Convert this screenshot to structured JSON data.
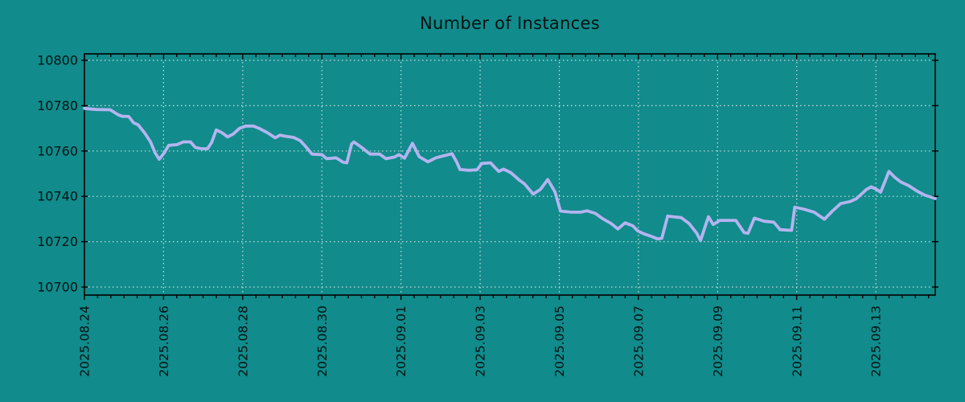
{
  "title": "Number of Instances",
  "colors": {
    "background": "#118b8b",
    "line": "#b4b4f0",
    "grid": "#cfdede",
    "frame": "#000000",
    "text": "#021212"
  },
  "chart_data": {
    "type": "line",
    "title": "Number of Instances",
    "legend": null,
    "grid": "dotted",
    "x_axis": {
      "tick_labels": [
        "2025.08.24",
        "2025.08.26",
        "2025.08.28",
        "2025.08.30",
        "2025.09.01",
        "2025.09.03",
        "2025.09.05",
        "2025.09.07",
        "2025.09.09",
        "2025.09.11",
        "2025.09.13"
      ],
      "tick_days": [
        0,
        2,
        4,
        6,
        8,
        10,
        12,
        14,
        16,
        18,
        20
      ],
      "range_days": [
        0,
        21.5
      ],
      "minor_tick_days": 0.3333,
      "label_rotation_deg": -90
    },
    "y_axis": {
      "ticks": [
        10700,
        10720,
        10740,
        10760,
        10780,
        10800
      ],
      "range": [
        10700,
        10800
      ]
    },
    "series": [
      {
        "name": "instances",
        "points": [
          [
            0.0,
            10778.8
          ],
          [
            0.3,
            10778.3
          ],
          [
            0.65,
            10778.2
          ],
          [
            0.85,
            10776.0
          ],
          [
            0.96,
            10775.3
          ],
          [
            1.12,
            10775.2
          ],
          [
            1.24,
            10772.5
          ],
          [
            1.36,
            10771.5
          ],
          [
            1.52,
            10768.0
          ],
          [
            1.67,
            10764.0
          ],
          [
            1.79,
            10759.0
          ],
          [
            1.89,
            10756.4
          ],
          [
            2.01,
            10759.0
          ],
          [
            2.13,
            10762.5
          ],
          [
            2.34,
            10762.8
          ],
          [
            2.5,
            10764.0
          ],
          [
            2.68,
            10764.0
          ],
          [
            2.8,
            10761.6
          ],
          [
            2.95,
            10761.0
          ],
          [
            3.11,
            10761.0
          ],
          [
            3.21,
            10763.6
          ],
          [
            3.33,
            10769.3
          ],
          [
            3.48,
            10768.0
          ],
          [
            3.62,
            10766.2
          ],
          [
            3.76,
            10767.5
          ],
          [
            3.92,
            10770.0
          ],
          [
            4.07,
            10771.0
          ],
          [
            4.27,
            10771.0
          ],
          [
            4.41,
            10770.0
          ],
          [
            4.63,
            10768.0
          ],
          [
            4.82,
            10765.8
          ],
          [
            4.94,
            10767.0
          ],
          [
            5.08,
            10766.5
          ],
          [
            5.28,
            10766.0
          ],
          [
            5.45,
            10764.6
          ],
          [
            5.59,
            10762.0
          ],
          [
            5.75,
            10758.6
          ],
          [
            6.0,
            10758.4
          ],
          [
            6.12,
            10756.6
          ],
          [
            6.36,
            10757.0
          ],
          [
            6.54,
            10755.0
          ],
          [
            6.63,
            10754.8
          ],
          [
            6.75,
            10763.0
          ],
          [
            6.81,
            10764.0
          ],
          [
            7.01,
            10761.5
          ],
          [
            7.22,
            10758.6
          ],
          [
            7.46,
            10758.6
          ],
          [
            7.62,
            10756.6
          ],
          [
            7.83,
            10757.3
          ],
          [
            7.95,
            10758.4
          ],
          [
            8.09,
            10756.8
          ],
          [
            8.29,
            10763.4
          ],
          [
            8.46,
            10757.5
          ],
          [
            8.68,
            10755.2
          ],
          [
            8.88,
            10757.0
          ],
          [
            9.11,
            10758.0
          ],
          [
            9.29,
            10758.8
          ],
          [
            9.41,
            10755.0
          ],
          [
            9.49,
            10751.8
          ],
          [
            9.72,
            10751.5
          ],
          [
            9.92,
            10751.7
          ],
          [
            10.04,
            10754.5
          ],
          [
            10.26,
            10754.8
          ],
          [
            10.47,
            10751.0
          ],
          [
            10.59,
            10752.0
          ],
          [
            10.77,
            10750.5
          ],
          [
            10.98,
            10747.3
          ],
          [
            11.12,
            10745.5
          ],
          [
            11.34,
            10741.0
          ],
          [
            11.52,
            10743.0
          ],
          [
            11.71,
            10747.4
          ],
          [
            11.89,
            10742.0
          ],
          [
            12.03,
            10733.5
          ],
          [
            12.3,
            10733.0
          ],
          [
            12.54,
            10733.0
          ],
          [
            12.7,
            10733.6
          ],
          [
            12.91,
            10732.5
          ],
          [
            13.11,
            10730.0
          ],
          [
            13.31,
            10728.0
          ],
          [
            13.48,
            10725.6
          ],
          [
            13.66,
            10728.3
          ],
          [
            13.86,
            10727.0
          ],
          [
            13.98,
            10724.8
          ],
          [
            14.13,
            10723.5
          ],
          [
            14.33,
            10722.3
          ],
          [
            14.49,
            10721.2
          ],
          [
            14.59,
            10721.5
          ],
          [
            14.74,
            10731.3
          ],
          [
            14.88,
            10731.0
          ],
          [
            15.08,
            10730.6
          ],
          [
            15.28,
            10728.0
          ],
          [
            15.47,
            10723.8
          ],
          [
            15.57,
            10720.5
          ],
          [
            15.71,
            10728.0
          ],
          [
            15.77,
            10731.0
          ],
          [
            15.89,
            10727.6
          ],
          [
            16.06,
            10729.4
          ],
          [
            16.46,
            10729.4
          ],
          [
            16.67,
            10724.0
          ],
          [
            16.77,
            10723.7
          ],
          [
            16.93,
            10730.4
          ],
          [
            17.18,
            10729.0
          ],
          [
            17.42,
            10728.6
          ],
          [
            17.58,
            10725.3
          ],
          [
            17.87,
            10725.0
          ],
          [
            17.95,
            10735.2
          ],
          [
            18.19,
            10734.3
          ],
          [
            18.44,
            10733.0
          ],
          [
            18.7,
            10729.9
          ],
          [
            18.9,
            10733.5
          ],
          [
            19.11,
            10736.8
          ],
          [
            19.35,
            10737.7
          ],
          [
            19.51,
            10739.0
          ],
          [
            19.76,
            10743.0
          ],
          [
            19.88,
            10744.2
          ],
          [
            20.02,
            10743.0
          ],
          [
            20.12,
            10741.8
          ],
          [
            20.24,
            10747.0
          ],
          [
            20.33,
            10751.0
          ],
          [
            20.47,
            10748.5
          ],
          [
            20.63,
            10746.3
          ],
          [
            20.83,
            10744.7
          ],
          [
            21.04,
            10742.3
          ],
          [
            21.24,
            10740.5
          ],
          [
            21.38,
            10739.7
          ],
          [
            21.5,
            10739.0
          ]
        ]
      }
    ]
  }
}
